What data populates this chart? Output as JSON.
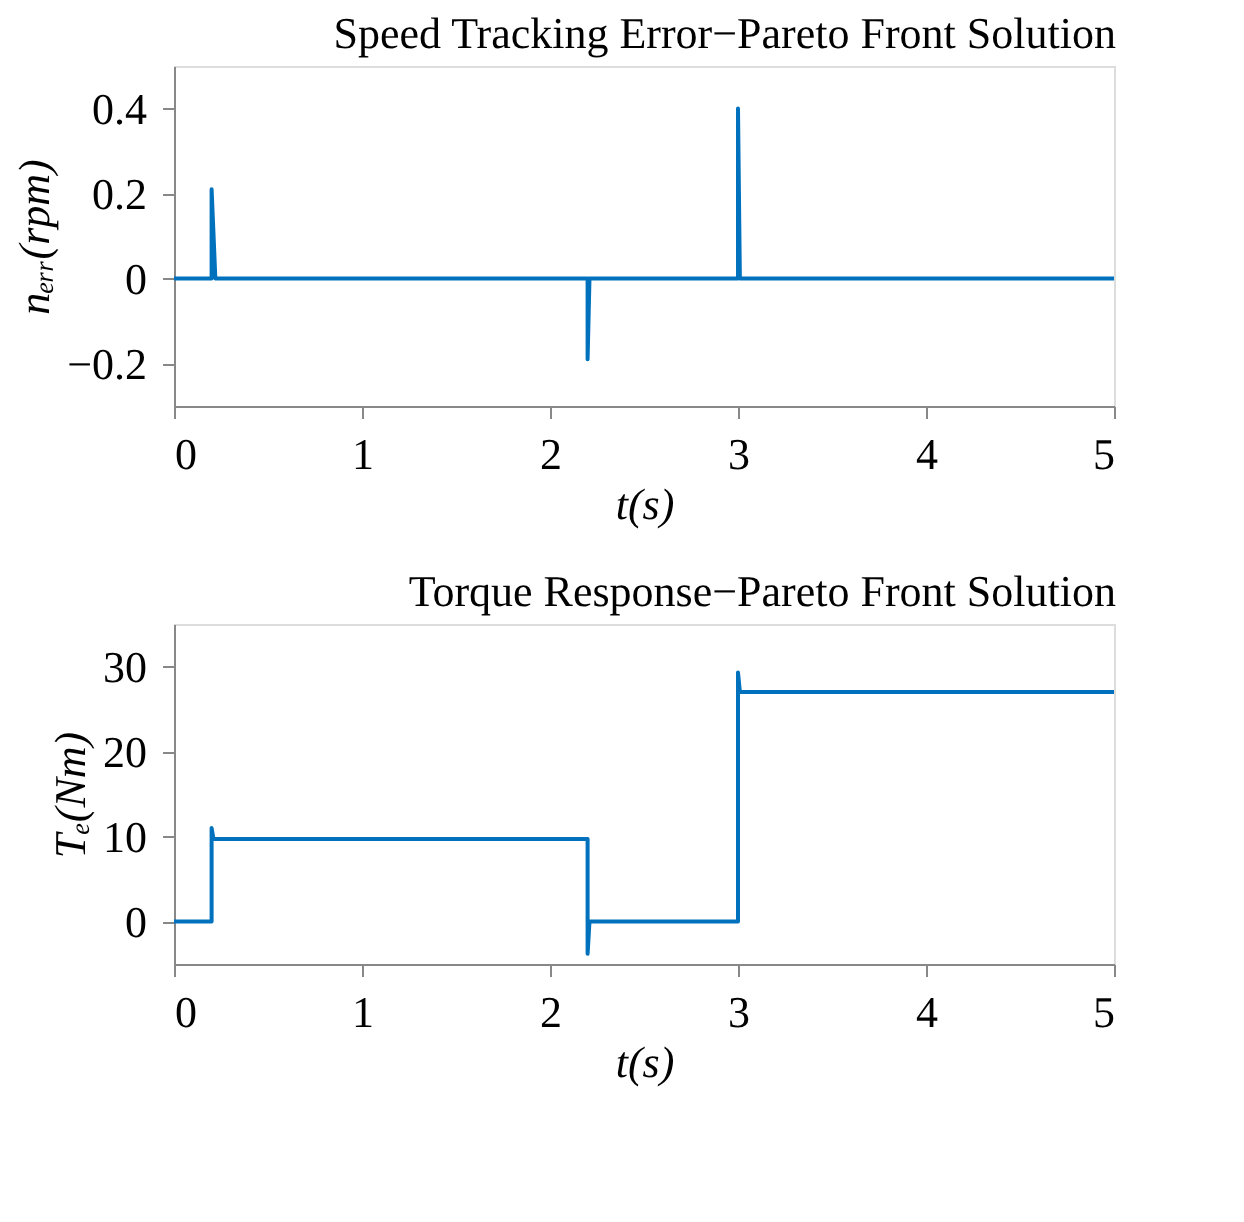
{
  "chart_data": [
    {
      "type": "line",
      "title": "Speed Tracking Error−Pareto Front Solution",
      "xlabel": "t(s)",
      "ylabel": "nₑᵣᵣ(rpm)",
      "x": [
        0,
        0.2,
        0.2,
        0.22,
        2.2,
        2.2,
        2.21,
        3.0,
        3.0,
        3.01,
        5
      ],
      "series": [
        {
          "color": "#0072bd",
          "values": [
            0,
            0,
            0.21,
            0,
            0,
            -0.19,
            0,
            0,
            0.4,
            0,
            0
          ]
        }
      ],
      "xlim": [
        0,
        5
      ],
      "ylim": [
        -0.3,
        0.5
      ],
      "xticks": [
        0,
        1,
        2,
        3,
        4,
        5
      ],
      "yticks": [
        -0.2,
        0,
        0.2,
        0.4
      ],
      "grid": false,
      "line_style": "solid"
    },
    {
      "type": "line",
      "title": "Torque Response−Pareto Front Solution",
      "xlabel": "t(s)",
      "ylabel": "Tₑ(Nm)",
      "x": [
        0,
        0.2,
        0.2,
        0.21,
        2.2,
        2.2,
        2.21,
        3.0,
        3.0,
        3.01,
        5
      ],
      "series": [
        {
          "color": "#0072bd",
          "values": [
            0,
            0,
            11,
            9.7,
            9.7,
            -3.8,
            0,
            0,
            29.3,
            27,
            27
          ]
        }
      ],
      "xlim": [
        0,
        5
      ],
      "ylim": [
        -5,
        35
      ],
      "xticks": [
        0,
        1,
        2,
        3,
        4,
        5
      ],
      "yticks": [
        0,
        10,
        20,
        30
      ],
      "grid": false,
      "line_style": "solid"
    }
  ]
}
